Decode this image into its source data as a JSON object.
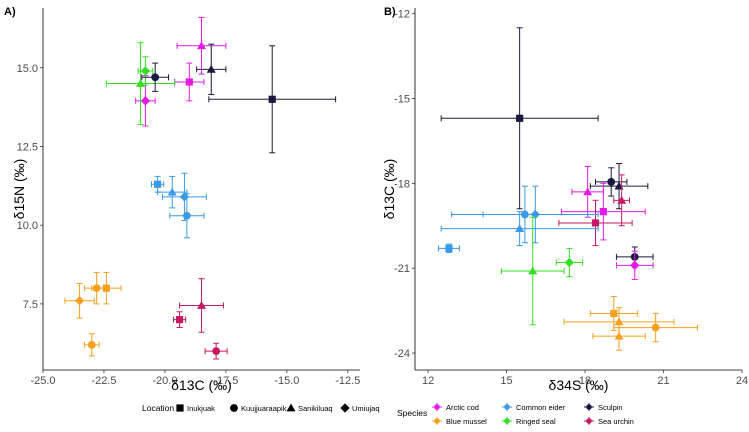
{
  "legends": {
    "location": {
      "title": "Location",
      "items": [
        {
          "label": "Inukjuak",
          "shape": "square"
        },
        {
          "label": "Kuujjuaraapik",
          "shape": "circle"
        },
        {
          "label": "Sanikiluaq",
          "shape": "triangle"
        },
        {
          "label": "Umiujaq",
          "shape": "diamond"
        }
      ]
    },
    "species": {
      "title": "Species",
      "items": [
        {
          "label": "Arctic cod",
          "color": "#e619e6"
        },
        {
          "label": "Blue mussel",
          "color": "#f5a11f"
        },
        {
          "label": "Common eider",
          "color": "#3b9ae6"
        },
        {
          "label": "Ringed seal",
          "color": "#33e01f"
        },
        {
          "label": "Sculpin",
          "color": "#1a1a40"
        },
        {
          "label": "Sea urchin",
          "color": "#c41a66"
        }
      ]
    }
  },
  "chart_data": [
    {
      "type": "scatter",
      "panel": "A)",
      "xlabel": "δ13C (‰)",
      "ylabel": "δ15N (‰)",
      "xlim": [
        -25.0,
        -12.0
      ],
      "ylim": [
        5.4,
        16.9
      ],
      "xticks": [
        "-25.0",
        "-22.5",
        "-20.0",
        "-17.5",
        "-15.0",
        "-12.5"
      ],
      "xtick_values": [
        -25.0,
        -22.5,
        -20.0,
        -17.5,
        -15.0,
        -12.5
      ],
      "yticks": [
        "7.5",
        "10.0",
        "12.5",
        "15.0"
      ],
      "ytick_values": [
        7.5,
        10.0,
        12.5,
        15.0
      ],
      "grid": false,
      "points": [
        {
          "species": "Arctic cod",
          "location": "Sanikiluaq",
          "x": -18.5,
          "y": 15.7,
          "xerr": 1.0,
          "yerr": 0.9
        },
        {
          "species": "Arctic cod",
          "location": "Inukjuak",
          "x": -19.0,
          "y": 14.55,
          "xerr": 0.6,
          "yerr": 0.6
        },
        {
          "species": "Arctic cod",
          "location": "Umiujaq",
          "x": -20.8,
          "y": 13.95,
          "xerr": 0.4,
          "yerr": 0.8
        },
        {
          "species": "Ringed seal",
          "location": "Sanikiluaq",
          "x": -21.0,
          "y": 14.5,
          "xerr": 1.4,
          "yerr": 1.3
        },
        {
          "species": "Ringed seal",
          "location": "Umiujaq",
          "x": -20.8,
          "y": 14.9,
          "xerr": 0.3,
          "yerr": 0.45
        },
        {
          "species": "Sculpin",
          "location": "Kuujjuaraapik",
          "x": -20.4,
          "y": 14.7,
          "xerr": 0.55,
          "yerr": 0.45
        },
        {
          "species": "Sculpin",
          "location": "Sanikiluaq",
          "x": -18.1,
          "y": 14.95,
          "xerr": 0.6,
          "yerr": 0.8
        },
        {
          "species": "Sculpin",
          "location": "Inukjuak",
          "x": -15.6,
          "y": 14.0,
          "xerr": 2.6,
          "yerr": 1.7
        },
        {
          "species": "Common eider",
          "location": "Inukjuak",
          "x": -20.3,
          "y": 11.3,
          "xerr": 0.25,
          "yerr": 0.25
        },
        {
          "species": "Common eider",
          "location": "Sanikiluaq",
          "x": -19.7,
          "y": 11.05,
          "xerr": 0.6,
          "yerr": 0.5
        },
        {
          "species": "Common eider",
          "location": "Umiujaq",
          "x": -19.2,
          "y": 10.9,
          "xerr": 0.9,
          "yerr": 0.75
        },
        {
          "species": "Common eider",
          "location": "Kuujjuaraapik",
          "x": -19.1,
          "y": 10.3,
          "xerr": 0.7,
          "yerr": 0.7
        },
        {
          "species": "Blue mussel",
          "location": "Umiujaq",
          "x": -23.5,
          "y": 7.6,
          "xerr": 0.6,
          "yerr": 0.55
        },
        {
          "species": "Blue mussel",
          "location": "Kuujjuaraapik",
          "x": -22.8,
          "y": 8.0,
          "xerr": 0.5,
          "yerr": 0.5
        },
        {
          "species": "Blue mussel",
          "location": "Inukjuak",
          "x": -22.4,
          "y": 8.0,
          "xerr": 0.6,
          "yerr": 0.5
        },
        {
          "species": "Blue mussel",
          "location": "Kuujjuaraapik",
          "x": -23.0,
          "y": 6.2,
          "xerr": 0.3,
          "yerr": 0.35
        },
        {
          "species": "Sea urchin",
          "location": "Sanikiluaq",
          "x": -18.5,
          "y": 7.45,
          "xerr": 0.9,
          "yerr": 0.85
        },
        {
          "species": "Sea urchin",
          "location": "Inukjuak",
          "x": -19.4,
          "y": 7.0,
          "xerr": 0.25,
          "yerr": 0.25
        },
        {
          "species": "Sea urchin",
          "location": "Kuujjuaraapik",
          "x": -17.9,
          "y": 6.0,
          "xerr": 0.45,
          "yerr": 0.25
        }
      ]
    },
    {
      "type": "scatter",
      "panel": "B)",
      "xlabel": "δ34S (‰)",
      "ylabel": "δ13C (‰)",
      "xlim": [
        11.5,
        24.0
      ],
      "ylim": [
        -24.6,
        -11.8
      ],
      "xticks": [
        "12",
        "15",
        "18",
        "21",
        "24"
      ],
      "xtick_values": [
        12,
        15,
        18,
        21,
        24
      ],
      "yticks": [
        "-24",
        "-21",
        "-18",
        "-15",
        "-12"
      ],
      "ytick_values": [
        -24,
        -21,
        -18,
        -15,
        -12
      ],
      "grid": false,
      "points": [
        {
          "species": "Sculpin",
          "location": "Inukjuak",
          "x": 15.5,
          "y": -15.7,
          "xerr": 3.0,
          "yerr": 3.2
        },
        {
          "species": "Sculpin",
          "location": "Kuujjuaraapik",
          "x": 19.0,
          "y": -17.95,
          "xerr": 0.6,
          "yerr": 0.5
        },
        {
          "species": "Sculpin",
          "location": "Sanikiluaq",
          "x": 19.3,
          "y": -18.1,
          "xerr": 1.1,
          "yerr": 0.8
        },
        {
          "species": "Sculpin",
          "location": "Kuujjuaraapik",
          "x": 19.9,
          "y": -20.6,
          "xerr": 0.7,
          "yerr": 0.35
        },
        {
          "species": "Arctic cod",
          "location": "Sanikiluaq",
          "x": 18.1,
          "y": -18.3,
          "xerr": 0.6,
          "yerr": 0.9
        },
        {
          "species": "Arctic cod",
          "location": "Inukjuak",
          "x": 18.7,
          "y": -19.0,
          "xerr": 1.6,
          "yerr": 1.0
        },
        {
          "species": "Arctic cod",
          "location": "Umiujaq",
          "x": 19.9,
          "y": -20.9,
          "xerr": 0.7,
          "yerr": 0.5
        },
        {
          "species": "Sea urchin",
          "location": "Sanikiluaq",
          "x": 19.4,
          "y": -18.6,
          "xerr": 0.3,
          "yerr": 0.9
        },
        {
          "species": "Sea urchin",
          "location": "Inukjuak",
          "x": 18.4,
          "y": -19.4,
          "xerr": 1.4,
          "yerr": 0.8
        },
        {
          "species": "Common eider",
          "location": "Inukjuak",
          "x": 12.8,
          "y": -20.3,
          "xerr": 0.4,
          "yerr": 0.15
        },
        {
          "species": "Common eider",
          "location": "Kuujjuaraapik",
          "x": 15.7,
          "y": -19.1,
          "xerr": 2.8,
          "yerr": 1.0
        },
        {
          "species": "Common eider",
          "location": "Umiujaq",
          "x": 16.1,
          "y": -19.1,
          "xerr": 2.0,
          "yerr": 1.0
        },
        {
          "species": "Common eider",
          "location": "Sanikiluaq",
          "x": 15.5,
          "y": -19.6,
          "xerr": 3.0,
          "yerr": 0.6
        },
        {
          "species": "Ringed seal",
          "location": "Sanikiluaq",
          "x": 16.0,
          "y": -21.1,
          "xerr": 1.2,
          "yerr": 1.9
        },
        {
          "species": "Ringed seal",
          "location": "Umiujaq",
          "x": 17.4,
          "y": -20.8,
          "xerr": 0.5,
          "yerr": 0.5
        },
        {
          "species": "Blue mussel",
          "location": "Inukjuak",
          "x": 19.1,
          "y": -22.6,
          "xerr": 0.9,
          "yerr": 0.6
        },
        {
          "species": "Blue mussel",
          "location": "Sanikiluaq",
          "x": 19.3,
          "y": -22.9,
          "xerr": 2.1,
          "yerr": 0.5
        },
        {
          "species": "Blue mussel",
          "location": "Kuujjuaraapik",
          "x": 20.7,
          "y": -23.1,
          "xerr": 1.6,
          "yerr": 0.5
        },
        {
          "species": "Blue mussel",
          "location": "Sanikiluaq",
          "x": 19.3,
          "y": -23.4,
          "xerr": 1.0,
          "yerr": 0.5
        }
      ]
    }
  ]
}
